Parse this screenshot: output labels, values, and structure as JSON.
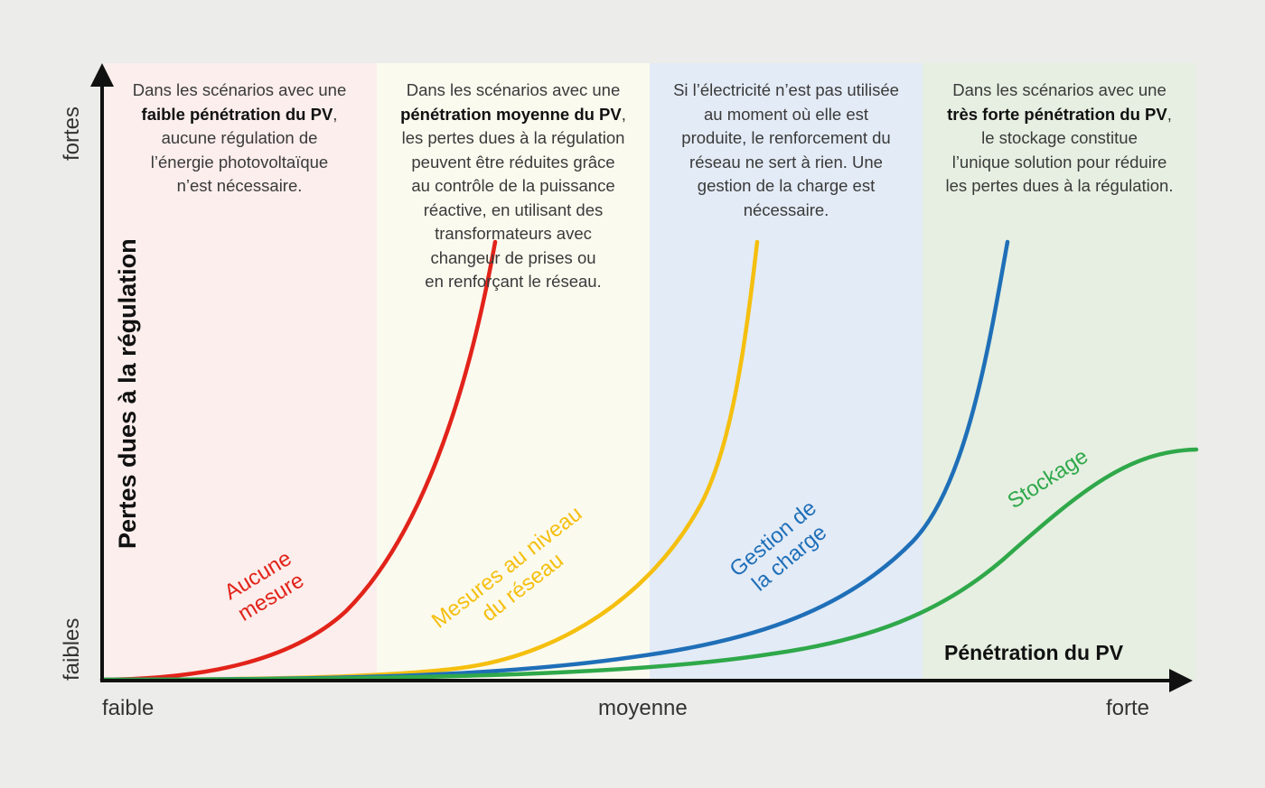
{
  "y_axis": {
    "label": "Pertes dues à la régulation",
    "high": "fortes",
    "low": "faibles"
  },
  "x_axis": {
    "label": "Pénétration du PV",
    "ticks": [
      "faible",
      "moyenne",
      "forte"
    ]
  },
  "zones": [
    {
      "color": "#fbeeec",
      "lines": [
        [
          "Dans les scénarios avec une"
        ],
        [
          "",
          "faible pénétration du PV",
          ","
        ],
        [
          "aucune régulation de"
        ],
        [
          "l’énergie photovoltaïque"
        ],
        [
          "n’est nécessaire."
        ]
      ]
    },
    {
      "color": "#fbfaef",
      "lines": [
        [
          "Dans les scénarios avec une"
        ],
        [
          "",
          "pénétration moyenne du PV",
          ","
        ],
        [
          "les pertes dues à la régulation"
        ],
        [
          "peuvent être réduites grâce"
        ],
        [
          "au contrôle de la puissance"
        ],
        [
          "réactive, en utilisant des"
        ],
        [
          "transformateurs avec"
        ],
        [
          "changeur de prises ou"
        ],
        [
          "en renforçant le réseau."
        ]
      ]
    },
    {
      "color": "#e3ebf6",
      "lines": [
        [
          "Si l’électricité n’est pas utilisée"
        ],
        [
          "au moment où elle est"
        ],
        [
          "produite, le renforcement du"
        ],
        [
          "réseau ne sert à rien. Une"
        ],
        [
          "gestion de la charge est"
        ],
        [
          "nécessaire."
        ]
      ]
    },
    {
      "color": "#e6efe1",
      "lines": [
        [
          "Dans les scénarios avec une"
        ],
        [
          "",
          "très forte pénétration du PV",
          ","
        ],
        [
          "le stockage constitue"
        ],
        [
          "l’unique solution pour réduire"
        ],
        [
          "les pertes dues à la régulation."
        ]
      ]
    }
  ],
  "curves": [
    {
      "label_lines": [
        "Aucune",
        "mesure"
      ],
      "color": "#e2231a"
    },
    {
      "label_lines": [
        "Mesures au niveau",
        "du réseau"
      ],
      "color": "#f5bf0f"
    },
    {
      "label_lines": [
        "Gestion de",
        "la charge"
      ],
      "color": "#1f6fb8"
    },
    {
      "label_lines": [
        "Stockage"
      ],
      "color": "#2fa84a"
    }
  ]
}
